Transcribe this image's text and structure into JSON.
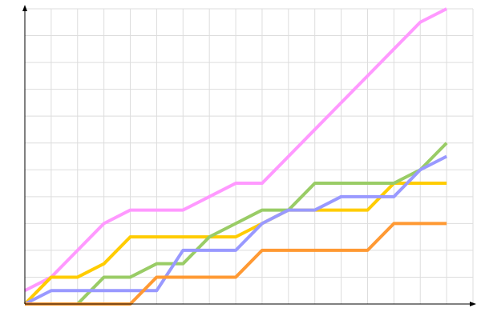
{
  "chart_data": {
    "type": "line",
    "x": [
      0,
      1,
      2,
      3,
      4,
      5,
      6,
      7,
      8,
      9,
      10,
      11,
      12,
      13,
      14,
      15,
      16
    ],
    "series": [
      {
        "color": "#ff99ff",
        "values": [
          0.5,
          1,
          2,
          3,
          3.5,
          3.5,
          3.5,
          4,
          4.5,
          4.5,
          5.5,
          6.5,
          7.5,
          8.5,
          9.5,
          10.5,
          11
        ]
      },
      {
        "color": "#ffcc00",
        "values": [
          0,
          1,
          1,
          1.5,
          2.5,
          2.5,
          2.5,
          2.5,
          2.5,
          3,
          3.5,
          3.5,
          3.5,
          3.5,
          4.5,
          4.5,
          4.5
        ]
      },
      {
        "color": "#99cc66",
        "values": [
          0,
          0,
          0,
          1,
          1,
          1.5,
          1.5,
          2.5,
          3,
          3.5,
          3.5,
          4.5,
          4.5,
          4.5,
          4.5,
          5,
          6
        ]
      },
      {
        "color": "#9999ff",
        "values": [
          0,
          0.5,
          0.5,
          0.5,
          0.5,
          0.5,
          2,
          2,
          2,
          3,
          3.5,
          3.5,
          4,
          4,
          4,
          5,
          5.5
        ]
      },
      {
        "color": "#ff9933",
        "values": [
          0,
          0,
          0,
          0,
          0,
          1,
          1,
          1,
          1,
          2,
          2,
          2,
          2,
          2,
          3,
          3,
          3
        ]
      }
    ],
    "xlim": [
      0,
      17
    ],
    "ylim": [
      0,
      11
    ],
    "xticks": [
      0,
      1,
      2,
      3,
      4,
      5,
      6,
      7,
      8,
      9,
      10,
      11,
      12,
      13,
      14,
      15,
      16,
      17
    ],
    "yticks": [
      0,
      1,
      2,
      3,
      4,
      5,
      6,
      7,
      8,
      9,
      10,
      11
    ],
    "grid": true
  }
}
